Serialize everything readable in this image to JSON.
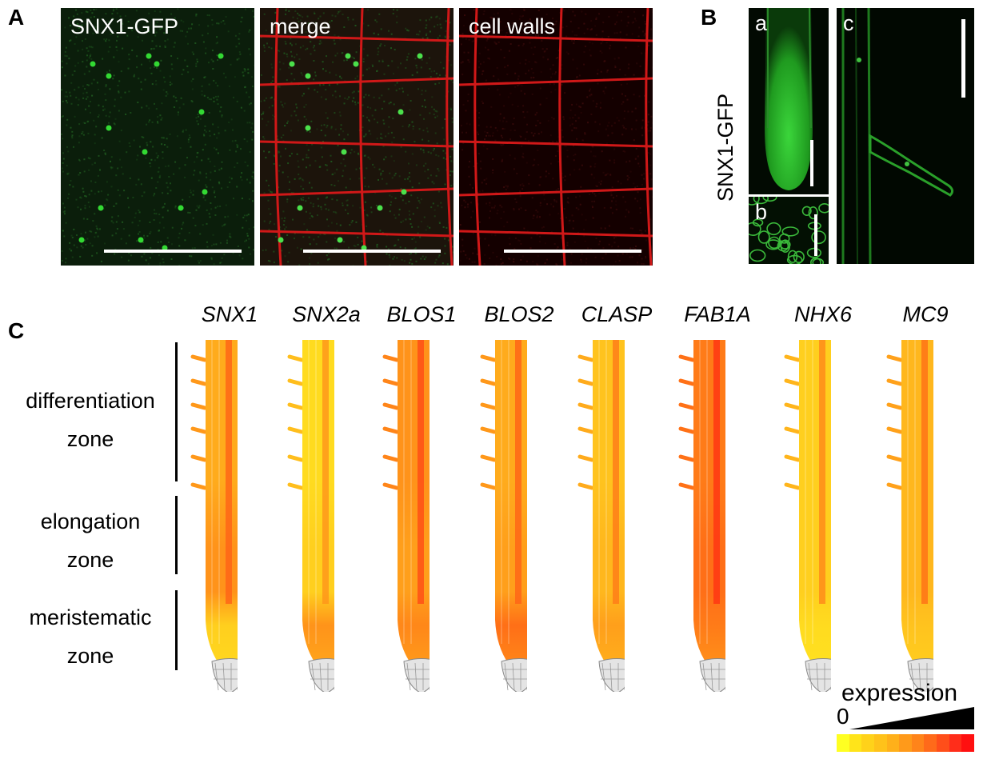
{
  "panels": {
    "A": {
      "letter": "A",
      "images": [
        {
          "label": "SNX1-GFP",
          "bg": "#0b1e0b",
          "dot": "#33d933",
          "walls": false,
          "green": true
        },
        {
          "label": "merge",
          "bg": "#1c140b",
          "dot": "#4be04b",
          "walls": true,
          "green": true
        },
        {
          "label": "cell walls",
          "bg": "#140000",
          "dot": "#d21414",
          "walls": true,
          "green": false
        }
      ]
    },
    "B": {
      "letter": "B",
      "ylabel": "SNX1-GFP",
      "subpanels": [
        {
          "label": "a"
        },
        {
          "label": "b"
        },
        {
          "label": "c"
        }
      ]
    },
    "C": {
      "letter": "C",
      "genes": [
        "SNX1",
        "SNX2a",
        "BLOS1",
        "BLOS2",
        "CLASP",
        "FAB1A",
        "NHX6",
        "MC9"
      ],
      "zones": [
        {
          "line1": "differentiation",
          "line2": "zone"
        },
        {
          "line1": "elongation",
          "line2": "zone"
        },
        {
          "line1": "meristematic",
          "line2": "zone"
        }
      ],
      "expression_levels": [
        {
          "gene": "SNX1",
          "differentiation": 0.35,
          "elongation": 0.45,
          "meristematic": 0.2
        },
        {
          "gene": "SNX2a",
          "differentiation": 0.15,
          "elongation": 0.2,
          "meristematic": 0.45
        },
        {
          "gene": "BLOS1",
          "differentiation": 0.45,
          "elongation": 0.4,
          "meristematic": 0.5
        },
        {
          "gene": "BLOS2",
          "differentiation": 0.35,
          "elongation": 0.4,
          "meristematic": 0.6
        },
        {
          "gene": "CLASP",
          "differentiation": 0.25,
          "elongation": 0.3,
          "meristematic": 0.4
        },
        {
          "gene": "FAB1A",
          "differentiation": 0.55,
          "elongation": 0.6,
          "meristematic": 0.55
        },
        {
          "gene": "NHX6",
          "differentiation": 0.2,
          "elongation": 0.2,
          "meristematic": 0.15
        },
        {
          "gene": "MC9",
          "differentiation": 0.3,
          "elongation": 0.3,
          "meristematic": 0.25
        }
      ],
      "legend": {
        "title": "expression",
        "zero": "0",
        "colors": [
          "#ffff22",
          "#ffe41a",
          "#ffd21a",
          "#ffc21a",
          "#ffb01a",
          "#ff9a1a",
          "#ff841a",
          "#ff6a1a",
          "#ff4e1a",
          "#ff2d1a",
          "#ff1010"
        ]
      }
    }
  }
}
